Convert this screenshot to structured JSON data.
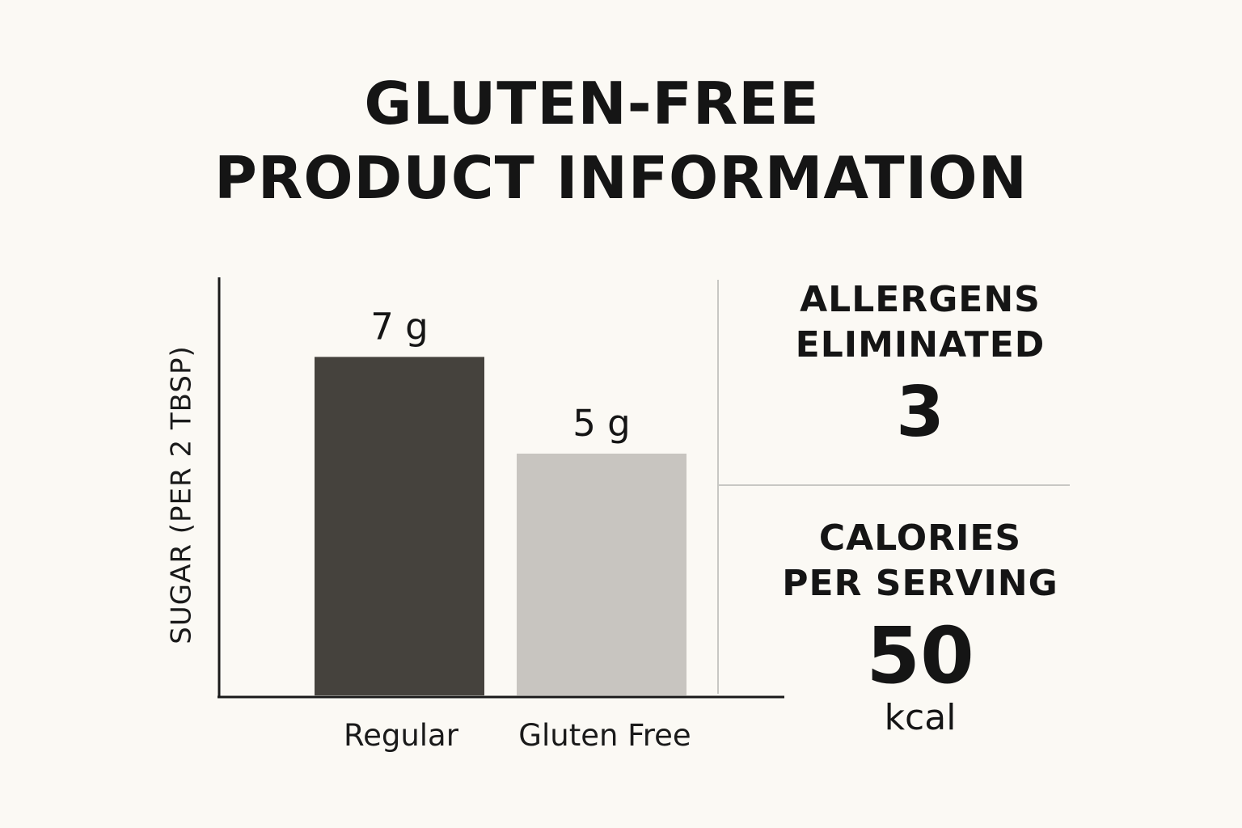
{
  "title": {
    "line1": "GLUTEN-FREE",
    "line2": "PRODUCT INFORMATION"
  },
  "chart_data": {
    "type": "bar",
    "categories": [
      "Regular",
      "Gluten Free"
    ],
    "values": [
      7,
      5
    ],
    "value_labels": [
      "7 g",
      "5 g"
    ],
    "ylabel": "SUGAR (PER 2 TBSP)",
    "xlabel": "",
    "ylim": [
      0,
      10
    ],
    "grid": false,
    "colors": [
      "#45423d",
      "#c8c5c0"
    ]
  },
  "stats": {
    "allergens": {
      "label": "ALLERGENS\nELIMINATED",
      "value": "3"
    },
    "calories": {
      "label": "CALORIES\nPER SERVING",
      "value": "50",
      "unit": "kcal"
    }
  }
}
